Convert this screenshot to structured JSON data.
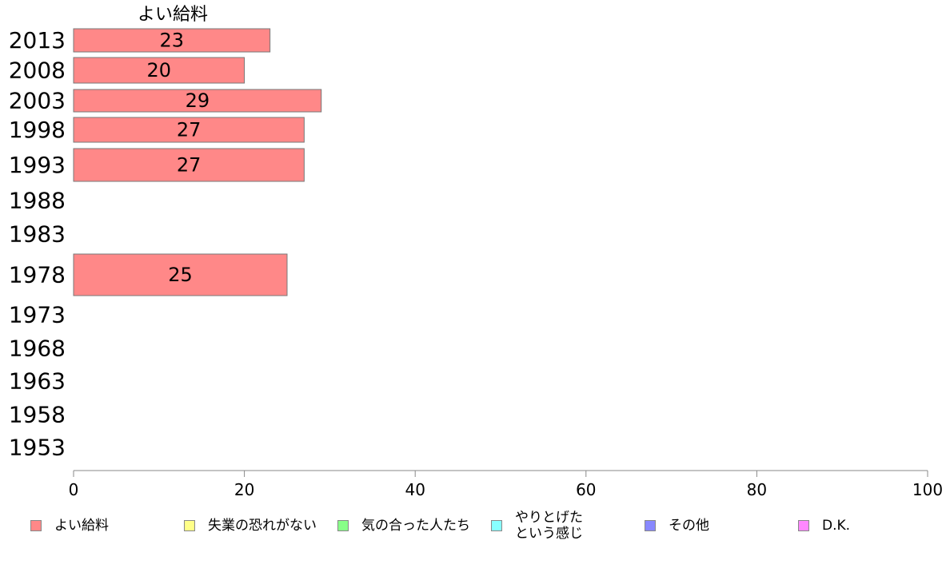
{
  "chart_data": {
    "type": "bar",
    "orientation": "horizontal",
    "title": "よい給料",
    "categories": [
      "2013",
      "2008",
      "2003",
      "1998",
      "1993",
      "1988",
      "1983",
      "1978",
      "1973",
      "1968",
      "1963",
      "1958",
      "1953"
    ],
    "series": [
      {
        "name": "よい給料",
        "color": "#ff8888",
        "values": [
          23,
          20,
          29,
          27,
          27,
          null,
          null,
          25,
          null,
          null,
          null,
          null,
          null
        ]
      }
    ],
    "bar_labels": [
      "23",
      "20",
      "29",
      "27",
      "27",
      "",
      "",
      "25",
      "",
      "",
      "",
      "",
      ""
    ],
    "xlim": [
      0,
      100
    ],
    "xticks": [
      0,
      20,
      40,
      60,
      80,
      100
    ],
    "xtick_labels": [
      "0",
      "20",
      "40",
      "60",
      "80",
      "100"
    ],
    "legend": [
      {
        "label": "よい給料",
        "color": "#ff8888"
      },
      {
        "label": "失業の恐れがない",
        "color": "#ffff88"
      },
      {
        "label": "気の合った人たち",
        "color": "#88ff88"
      },
      {
        "label": "やりとげた\nという感じ",
        "color": "#88ffff"
      },
      {
        "label": "その他",
        "color": "#8888ff"
      },
      {
        "label": "D.K.",
        "color": "#ff88ff"
      }
    ],
    "legend_position": "bottom"
  }
}
